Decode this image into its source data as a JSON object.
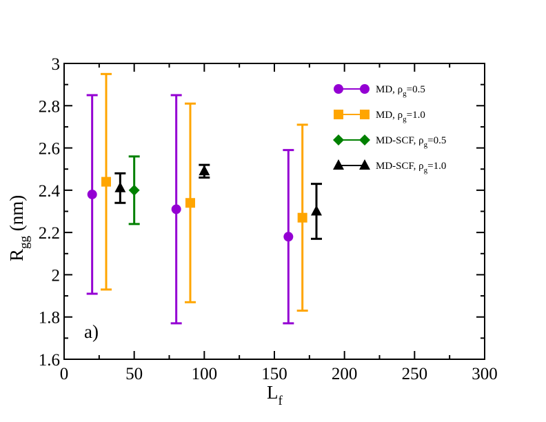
{
  "chart_data": {
    "type": "scatter",
    "title": "",
    "panel_label": "a)",
    "xlabel": "L",
    "xlabel_sub": "f",
    "ylabel": "R",
    "ylabel_sub": "gg",
    "ylabel_suffix": " (nm)",
    "xlim": [
      0,
      300
    ],
    "ylim": [
      1.6,
      3.0
    ],
    "x_ticks": [
      0,
      50,
      100,
      150,
      200,
      250,
      300
    ],
    "y_ticks": [
      1.6,
      1.8,
      2,
      2.2,
      2.4,
      2.6,
      2.8,
      3
    ],
    "x_tick_labels": [
      "0",
      "50",
      "100",
      "150",
      "200",
      "250",
      "300"
    ],
    "y_tick_labels": [
      "1.6",
      "1.8",
      "2",
      "2.2",
      "2.4",
      "2.6",
      "2.8",
      "3"
    ],
    "legend_position": "top-right",
    "series": [
      {
        "name": "MD, ρg=0.5",
        "legend_prefix": "MD, ρ",
        "legend_sub": "g",
        "legend_suffix": "=0.5",
        "color": "#9400D3",
        "marker": "circle",
        "points": [
          {
            "x": 20,
            "y": 2.38,
            "ylow": 1.91,
            "yhigh": 2.85
          },
          {
            "x": 80,
            "y": 2.31,
            "ylow": 1.77,
            "yhigh": 2.85
          },
          {
            "x": 160,
            "y": 2.18,
            "ylow": 1.77,
            "yhigh": 2.59
          }
        ]
      },
      {
        "name": "MD, ρg=1.0",
        "legend_prefix": "MD, ρ",
        "legend_sub": "g",
        "legend_suffix": "=1.0",
        "color": "#FFA500",
        "marker": "square",
        "points": [
          {
            "x": 30,
            "y": 2.44,
            "ylow": 1.93,
            "yhigh": 2.95
          },
          {
            "x": 90,
            "y": 2.34,
            "ylow": 1.87,
            "yhigh": 2.81
          },
          {
            "x": 170,
            "y": 2.27,
            "ylow": 1.83,
            "yhigh": 2.71
          }
        ]
      },
      {
        "name": "MD-SCF, ρg=0.5",
        "legend_prefix": "MD-SCF, ρ",
        "legend_sub": "g",
        "legend_suffix": "=0.5",
        "color": "#008000",
        "marker": "diamond",
        "points": [
          {
            "x": 50,
            "y": 2.4,
            "ylow": 2.24,
            "yhigh": 2.56
          }
        ]
      },
      {
        "name": "MD-SCF, ρg=1.0",
        "legend_prefix": "MD-SCF, ρ",
        "legend_sub": "g",
        "legend_suffix": "=1.0",
        "color": "#000000",
        "marker": "triangle",
        "points": [
          {
            "x": 40,
            "y": 2.41,
            "ylow": 2.34,
            "yhigh": 2.48
          },
          {
            "x": 100,
            "y": 2.49,
            "ylow": 2.46,
            "yhigh": 2.52
          },
          {
            "x": 180,
            "y": 2.3,
            "ylow": 2.17,
            "yhigh": 2.43
          }
        ]
      }
    ]
  }
}
